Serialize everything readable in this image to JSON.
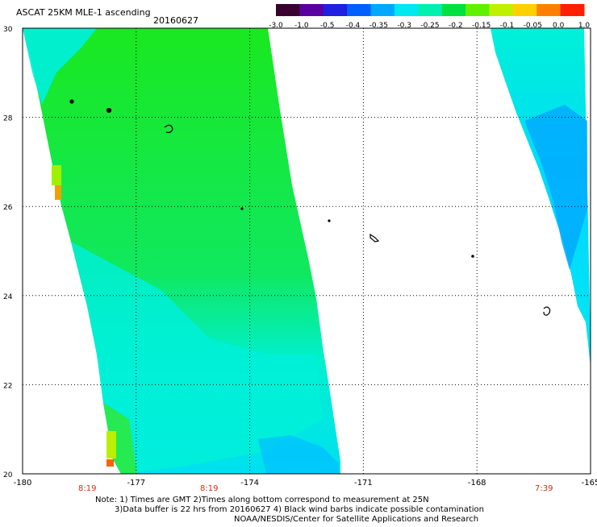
{
  "header": {
    "title": "ASCAT 25KM MLE-1 ascending",
    "date": "20160627"
  },
  "colorbar": {
    "labels": [
      "-3.0",
      "-1.0",
      "-0.5",
      "-0.4",
      "-0.35",
      "-0.3",
      "-0.25",
      "-0.2",
      "-0.15",
      "-0.1",
      "-0.05",
      "0.0",
      "1.0"
    ],
    "colors": [
      "#3a0030",
      "#5a00a0",
      "#2020e0",
      "#0060ff",
      "#00a8ff",
      "#00e8f0",
      "#00f0b0",
      "#00e040",
      "#60f000",
      "#c0f000",
      "#ffd000",
      "#ff8000",
      "#ff2000"
    ]
  },
  "map": {
    "lon_ticks": [
      "-180",
      "-177",
      "-174",
      "-171",
      "-168",
      "-165"
    ],
    "lat_ticks": [
      "30",
      "28",
      "26",
      "24",
      "22",
      "20"
    ],
    "lon_range": [
      -180,
      -165
    ],
    "lat_range": [
      20,
      30
    ],
    "time_labels": [
      {
        "text": "8:19",
        "lon": -178.4
      },
      {
        "text": "8:19",
        "lon": -175.2
      },
      {
        "text": "7:39",
        "lon": -166.1
      }
    ],
    "grid": "dotted"
  },
  "notes": {
    "line1": "Note: 1) Times are GMT 2)Times along bottom correspond to measurement at 25N",
    "line2": "3)Data buffer is 22 hrs from 20160627 4) Black wind barbs indicate possible contamination",
    "line3": "NOAA/NESDIS/Center for Satellite Applications and Research"
  },
  "colors": {
    "swath_green": "#22e812",
    "swath_cyan": "#00f0e0",
    "swath_blue": "#00b8ff"
  }
}
